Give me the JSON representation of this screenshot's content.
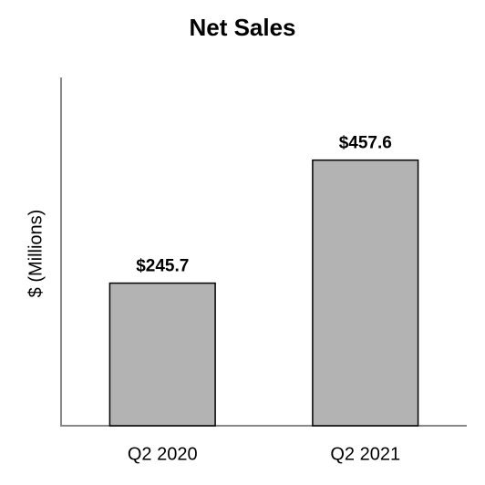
{
  "chart_data": {
    "type": "bar",
    "title": "Net Sales",
    "y_label": "$ (Millions)",
    "categories": [
      "Q2 2020",
      "Q2 2021"
    ],
    "values": [
      245.7,
      457.6
    ],
    "value_labels": [
      "$245.7",
      "$457.6"
    ],
    "color": "#b3b3b3",
    "ylim": [
      0,
      600
    ]
  }
}
